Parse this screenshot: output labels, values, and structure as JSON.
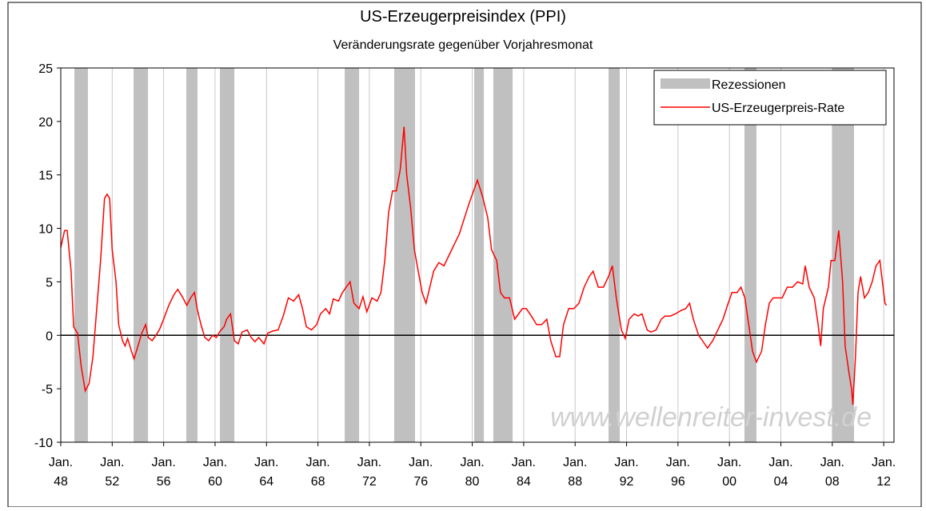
{
  "chart_data": {
    "type": "line",
    "title": "US-Erzeugerpreisindex (PPI)",
    "subtitle": "Veränderungsrate gegenüber Vorjahresmonat",
    "watermark": "www.wellenreiter-invest.de",
    "legend": "top-right",
    "xlim": [
      1948,
      2012.8
    ],
    "ylim": [
      -10,
      25
    ],
    "yticks": [
      -10,
      -5,
      0,
      5,
      10,
      15,
      20,
      25
    ],
    "xticks": [
      {
        "value": 1948,
        "label": "Jan. 48"
      },
      {
        "value": 1952,
        "label": "Jan. 52"
      },
      {
        "value": 1956,
        "label": "Jan. 56"
      },
      {
        "value": 1960,
        "label": "Jan. 60"
      },
      {
        "value": 1964,
        "label": "Jan. 64"
      },
      {
        "value": 1968,
        "label": "Jan. 68"
      },
      {
        "value": 1972,
        "label": "Jan. 72"
      },
      {
        "value": 1976,
        "label": "Jan. 76"
      },
      {
        "value": 1980,
        "label": "Jan. 80"
      },
      {
        "value": 1984,
        "label": "Jan. 84"
      },
      {
        "value": 1988,
        "label": "Jan. 88"
      },
      {
        "value": 1992,
        "label": "Jan. 92"
      },
      {
        "value": 1996,
        "label": "Jan. 96"
      },
      {
        "value": 2000,
        "label": "Jan. 00"
      },
      {
        "value": 2004,
        "label": "Jan. 04"
      },
      {
        "value": 2008,
        "label": "Jan. 08"
      },
      {
        "value": 2012,
        "label": "Jan. 12"
      }
    ],
    "grid": true,
    "recessions": {
      "name": "Rezessionen",
      "color": "#c0c0c0",
      "ranges": [
        [
          1949.06,
          1950.11
        ],
        [
          1953.66,
          1954.78
        ],
        [
          1957.76,
          1958.63
        ],
        [
          1960.38,
          1961.5
        ],
        [
          1970.08,
          1971.2
        ],
        [
          1973.93,
          1975.55
        ],
        [
          1980.15,
          1980.9
        ],
        [
          1981.64,
          1983.14
        ],
        [
          1990.6,
          1991.47
        ],
        [
          2001.17,
          2002.1
        ],
        [
          2008.01,
          2009.69
        ]
      ]
    },
    "x": [
      1948.0,
      1948.3,
      1948.5,
      1948.8,
      1949.0,
      1949.3,
      1949.6,
      1949.9,
      1950.2,
      1950.5,
      1950.8,
      1951.1,
      1951.4,
      1951.6,
      1951.8,
      1952.0,
      1952.3,
      1952.5,
      1952.8,
      1953.0,
      1953.2,
      1953.5,
      1953.7,
      1954.0,
      1954.3,
      1954.6,
      1954.8,
      1955.1,
      1955.4,
      1955.7,
      1956.0,
      1956.4,
      1956.8,
      1957.1,
      1957.5,
      1957.8,
      1958.1,
      1958.4,
      1958.6,
      1958.9,
      1959.2,
      1959.5,
      1959.8,
      1960.1,
      1960.4,
      1960.7,
      1960.9,
      1961.2,
      1961.5,
      1961.8,
      1962.1,
      1962.5,
      1962.8,
      1963.1,
      1963.4,
      1963.8,
      1964.1,
      1964.5,
      1964.9,
      1965.3,
      1965.7,
      1966.1,
      1966.5,
      1966.8,
      1967.1,
      1967.5,
      1967.9,
      1968.2,
      1968.6,
      1968.9,
      1969.2,
      1969.6,
      1969.9,
      1970.2,
      1970.5,
      1970.8,
      1971.2,
      1971.5,
      1971.8,
      1972.2,
      1972.6,
      1972.9,
      1973.2,
      1973.5,
      1973.8,
      1974.1,
      1974.4,
      1974.7,
      1974.9,
      1975.2,
      1975.5,
      1975.8,
      1976.1,
      1976.4,
      1976.7,
      1977.0,
      1977.4,
      1977.8,
      1978.2,
      1978.6,
      1979.0,
      1979.4,
      1979.8,
      1980.1,
      1980.4,
      1980.8,
      1981.2,
      1981.5,
      1981.9,
      1982.2,
      1982.5,
      1982.9,
      1983.3,
      1983.6,
      1983.9,
      1984.2,
      1984.6,
      1985.0,
      1985.4,
      1985.8,
      1986.1,
      1986.5,
      1986.8,
      1987.1,
      1987.5,
      1987.9,
      1988.3,
      1988.7,
      1989.1,
      1989.4,
      1989.8,
      1990.2,
      1990.6,
      1990.9,
      1991.2,
      1991.6,
      1991.9,
      1992.2,
      1992.6,
      1992.9,
      1993.2,
      1993.6,
      1993.9,
      1994.3,
      1994.7,
      1995.0,
      1995.4,
      1995.8,
      1996.2,
      1996.6,
      1996.9,
      1997.2,
      1997.6,
      1997.9,
      1998.3,
      1998.7,
      1999.1,
      1999.5,
      1999.9,
      2000.2,
      2000.6,
      2000.9,
      2001.2,
      2001.5,
      2001.8,
      2002.1,
      2002.5,
      2002.8,
      2003.1,
      2003.4,
      2003.8,
      2004.1,
      2004.5,
      2004.9,
      2005.3,
      2005.7,
      2005.9,
      2006.2,
      2006.6,
      2006.9,
      2007.1,
      2007.3,
      2007.7,
      2007.9,
      2008.2,
      2008.5,
      2008.8,
      2009.0,
      2009.3,
      2009.5,
      2009.6,
      2009.8,
      2010.0,
      2010.2,
      2010.5,
      2010.8,
      2011.1,
      2011.4,
      2011.7,
      2011.9,
      2012.1,
      2012.2
    ],
    "series": [
      {
        "name": "US-Erzeugerpreis-Rate",
        "color": "#ff0000",
        "values": [
          8.2,
          9.8,
          9.8,
          6,
          0.8,
          0.2,
          -3,
          -5.2,
          -4.5,
          -2,
          2.5,
          7,
          12.8,
          13.2,
          12.8,
          8,
          5,
          1,
          -0.5,
          -1,
          -0.3,
          -1.5,
          -2.2,
          -1,
          0.2,
          1,
          -0.2,
          -0.5,
          0,
          0.6,
          1.5,
          2.8,
          3.8,
          4.3,
          3.5,
          2.8,
          3.5,
          4,
          2.5,
          1,
          -0.2,
          -0.5,
          0,
          -0.2,
          0.4,
          0.8,
          1.5,
          2,
          -0.5,
          -0.8,
          0.3,
          0.5,
          -0.2,
          -0.6,
          -0.2,
          -0.8,
          0.2,
          0.4,
          0.5,
          1.8,
          3.5,
          3.2,
          3.8,
          2.5,
          0.8,
          0.5,
          1,
          2,
          2.5,
          2,
          3.4,
          3.2,
          4,
          4.5,
          5,
          3,
          2.5,
          3.6,
          2.2,
          3.5,
          3.2,
          4,
          7,
          11.5,
          13.5,
          13.5,
          15.5,
          19.5,
          15,
          12,
          8,
          6,
          4,
          3,
          4.5,
          6,
          6.8,
          6.5,
          7.5,
          8.5,
          9.5,
          11,
          12.5,
          13.5,
          14.5,
          13,
          11,
          8,
          7,
          4,
          3.5,
          3.5,
          1.5,
          2,
          2.5,
          2.5,
          1.8,
          1,
          1,
          1.5,
          -0.5,
          -2,
          -2,
          1,
          2.5,
          2.5,
          3,
          4.5,
          5.5,
          6,
          4.5,
          4.5,
          5.5,
          6.5,
          3.5,
          0.5,
          -0.3,
          1.5,
          2,
          1.8,
          2,
          0.5,
          0.3,
          0.5,
          1.5,
          1.8,
          1.8,
          2,
          2.3,
          2.5,
          3,
          1.5,
          0,
          -0.5,
          -1.2,
          -0.5,
          0.5,
          1.5,
          3,
          4,
          4,
          4.5,
          3.5,
          1,
          -1.5,
          -2.5,
          -1.5,
          1,
          3,
          3.5,
          3.5,
          3.5,
          4.5,
          4.5,
          5,
          4.8,
          6.5,
          4.5,
          3.5,
          1,
          -1,
          2.5,
          4.5,
          7,
          7,
          9.8,
          5,
          -1,
          -3.5,
          -5,
          -6.5,
          -2,
          4,
          5.5,
          3.5,
          4,
          5,
          6.5,
          7,
          5,
          3,
          2.8
        ]
      }
    ]
  }
}
